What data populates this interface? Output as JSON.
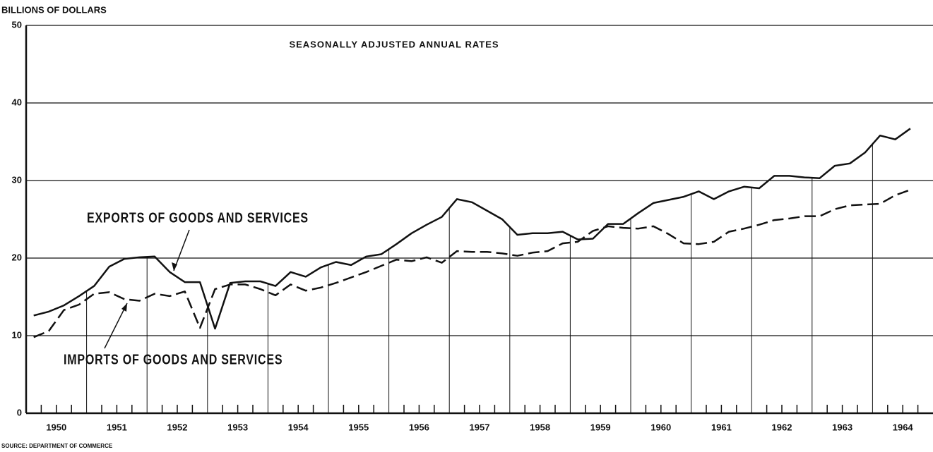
{
  "chart_data": {
    "type": "line",
    "ylabel": "BILLIONS OF DOLLARS",
    "annotation": "SEASONALLY ADJUSTED ANNUAL RATES",
    "source": "SOURCE: DEPARTMENT OF COMMERCE",
    "x": [
      1950.125,
      1950.375,
      1950.625,
      1950.875,
      1951.125,
      1951.375,
      1951.625,
      1951.875,
      1952.125,
      1952.375,
      1952.625,
      1952.875,
      1953.125,
      1953.375,
      1953.625,
      1953.875,
      1954.125,
      1954.375,
      1954.625,
      1954.875,
      1955.125,
      1955.375,
      1955.625,
      1955.875,
      1956.125,
      1956.375,
      1956.625,
      1956.875,
      1957.125,
      1957.375,
      1957.625,
      1957.875,
      1958.125,
      1958.375,
      1958.625,
      1958.875,
      1959.125,
      1959.375,
      1959.625,
      1959.875,
      1960.125,
      1960.375,
      1960.625,
      1960.875,
      1961.125,
      1961.375,
      1961.625,
      1961.875,
      1962.125,
      1962.375,
      1962.625,
      1962.875,
      1963.125,
      1963.375,
      1963.625,
      1963.875,
      1964.125,
      1964.375,
      1964.625
    ],
    "series": [
      {
        "name": "EXPORTS OF GOODS AND SERVICES",
        "color": "#111111",
        "dash": false,
        "values": [
          12.6,
          13.1,
          13.9,
          15.1,
          16.4,
          18.9,
          19.9,
          20.1,
          20.2,
          18.2,
          16.9,
          16.9,
          10.9,
          16.8,
          17.0,
          17.0,
          16.4,
          18.2,
          17.6,
          18.8,
          19.5,
          19.1,
          20.2,
          20.5,
          21.8,
          23.2,
          24.3,
          25.3,
          27.6,
          27.2,
          26.1,
          25.0,
          23.0,
          23.2,
          23.2,
          23.4,
          22.4,
          22.5,
          24.4,
          24.4,
          25.8,
          27.1,
          27.5,
          27.9,
          28.6,
          27.6,
          28.6,
          29.2,
          29.0,
          30.6,
          30.6,
          30.4,
          30.3,
          31.9,
          32.2,
          33.6,
          35.8,
          35.3,
          36.7
        ]
      },
      {
        "name": "IMPORTS OF GOODS AND SERVICES",
        "color": "#111111",
        "dash": true,
        "values": [
          9.8,
          10.6,
          13.3,
          14.0,
          15.4,
          15.6,
          14.7,
          14.5,
          15.4,
          15.1,
          15.7,
          11.0,
          16.0,
          16.6,
          16.6,
          16.0,
          15.2,
          16.6,
          15.8,
          16.2,
          16.8,
          17.5,
          18.2,
          19.0,
          19.8,
          19.6,
          20.1,
          19.4,
          20.9,
          20.8,
          20.8,
          20.6,
          20.3,
          20.7,
          20.9,
          21.9,
          22.1,
          23.5,
          24.1,
          23.9,
          23.8,
          24.1,
          23.1,
          21.9,
          21.8,
          22.1,
          23.4,
          23.8,
          24.3,
          24.9,
          25.1,
          25.4,
          25.4,
          26.3,
          26.8,
          26.9,
          27.0,
          28.1,
          28.8
        ]
      }
    ],
    "xlim": [
      1950,
      1965
    ],
    "xticks": [
      {
        "value": 1950.5,
        "label": "1950"
      },
      {
        "value": 1951.5,
        "label": "1951"
      },
      {
        "value": 1952.5,
        "label": "1952"
      },
      {
        "value": 1953.5,
        "label": "1953"
      },
      {
        "value": 1954.5,
        "label": "1954"
      },
      {
        "value": 1955.5,
        "label": "1955"
      },
      {
        "value": 1956.5,
        "label": "1956"
      },
      {
        "value": 1957.5,
        "label": "1957"
      },
      {
        "value": 1958.5,
        "label": "1958"
      },
      {
        "value": 1959.5,
        "label": "1959"
      },
      {
        "value": 1960.5,
        "label": "1960"
      },
      {
        "value": 1961.5,
        "label": "1961"
      },
      {
        "value": 1962.5,
        "label": "1962"
      },
      {
        "value": 1963.5,
        "label": "1963"
      },
      {
        "value": 1964.5,
        "label": "1964"
      }
    ],
    "ylim": [
      0,
      50
    ],
    "yticks": [
      0,
      10,
      20,
      30,
      40,
      50
    ],
    "grid": true
  }
}
